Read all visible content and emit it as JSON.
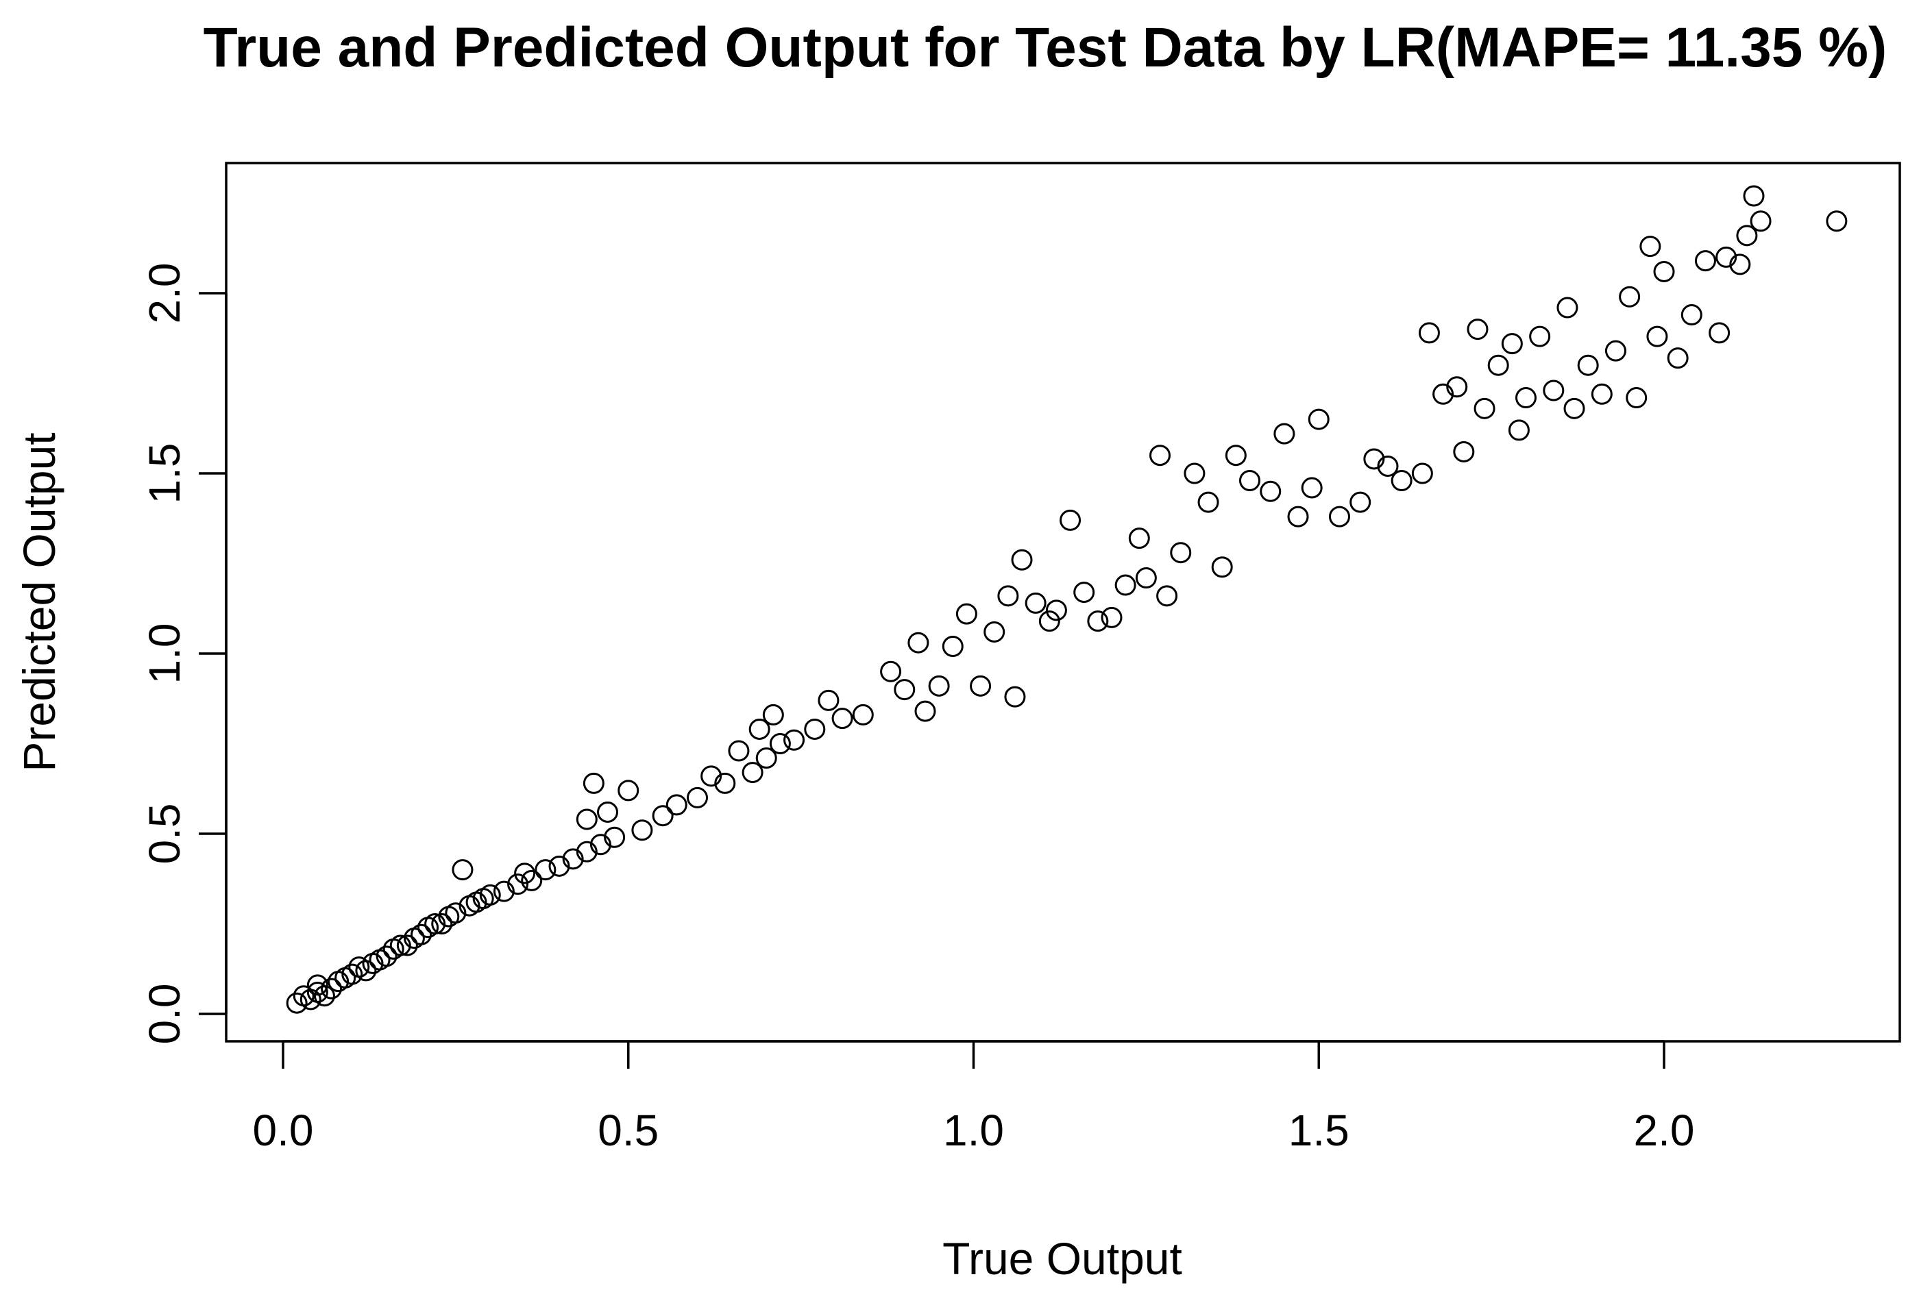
{
  "chart_data": {
    "type": "scatter",
    "title": "True and Predicted Output for Test Data by LR(MAPE= 11.35 %)",
    "xlabel": "True Output",
    "ylabel": "Predicted Output",
    "xlim": [
      0.0,
      2.25
    ],
    "ylim": [
      0.0,
      2.27
    ],
    "xticks": [
      "0.0",
      "0.5",
      "1.0",
      "1.5",
      "2.0"
    ],
    "yticks": [
      "0.0",
      "0.5",
      "1.0",
      "1.5",
      "2.0"
    ],
    "marker": "open-circle",
    "grid": false,
    "legend": "none",
    "colors": {
      "points": "#000000",
      "axes": "#000000",
      "background": "#ffffff"
    },
    "series": [
      {
        "points": [
          [
            0.02,
            0.03
          ],
          [
            0.03,
            0.05
          ],
          [
            0.04,
            0.04
          ],
          [
            0.05,
            0.06
          ],
          [
            0.05,
            0.08
          ],
          [
            0.06,
            0.05
          ],
          [
            0.07,
            0.07
          ],
          [
            0.08,
            0.09
          ],
          [
            0.09,
            0.1
          ],
          [
            0.1,
            0.11
          ],
          [
            0.11,
            0.13
          ],
          [
            0.12,
            0.12
          ],
          [
            0.13,
            0.14
          ],
          [
            0.14,
            0.15
          ],
          [
            0.15,
            0.16
          ],
          [
            0.16,
            0.18
          ],
          [
            0.17,
            0.19
          ],
          [
            0.18,
            0.19
          ],
          [
            0.19,
            0.21
          ],
          [
            0.2,
            0.22
          ],
          [
            0.21,
            0.24
          ],
          [
            0.22,
            0.25
          ],
          [
            0.23,
            0.25
          ],
          [
            0.24,
            0.27
          ],
          [
            0.25,
            0.28
          ],
          [
            0.26,
            0.4
          ],
          [
            0.27,
            0.3
          ],
          [
            0.28,
            0.31
          ],
          [
            0.29,
            0.32
          ],
          [
            0.3,
            0.33
          ],
          [
            0.32,
            0.34
          ],
          [
            0.34,
            0.36
          ],
          [
            0.35,
            0.39
          ],
          [
            0.36,
            0.37
          ],
          [
            0.38,
            0.4
          ],
          [
            0.4,
            0.41
          ],
          [
            0.42,
            0.43
          ],
          [
            0.44,
            0.45
          ],
          [
            0.44,
            0.54
          ],
          [
            0.45,
            0.64
          ],
          [
            0.46,
            0.47
          ],
          [
            0.47,
            0.56
          ],
          [
            0.48,
            0.49
          ],
          [
            0.5,
            0.62
          ],
          [
            0.52,
            0.51
          ],
          [
            0.55,
            0.55
          ],
          [
            0.57,
            0.58
          ],
          [
            0.6,
            0.6
          ],
          [
            0.62,
            0.66
          ],
          [
            0.64,
            0.64
          ],
          [
            0.66,
            0.73
          ],
          [
            0.68,
            0.67
          ],
          [
            0.69,
            0.79
          ],
          [
            0.7,
            0.71
          ],
          [
            0.71,
            0.83
          ],
          [
            0.72,
            0.75
          ],
          [
            0.74,
            0.76
          ],
          [
            0.77,
            0.79
          ],
          [
            0.79,
            0.87
          ],
          [
            0.81,
            0.82
          ],
          [
            0.84,
            0.83
          ],
          [
            0.88,
            0.95
          ],
          [
            0.9,
            0.9
          ],
          [
            0.92,
            1.03
          ],
          [
            0.93,
            0.84
          ],
          [
            0.95,
            0.91
          ],
          [
            0.97,
            1.02
          ],
          [
            0.99,
            1.11
          ],
          [
            1.01,
            0.91
          ],
          [
            1.03,
            1.06
          ],
          [
            1.05,
            1.16
          ],
          [
            1.06,
            0.88
          ],
          [
            1.07,
            1.26
          ],
          [
            1.09,
            1.14
          ],
          [
            1.11,
            1.09
          ],
          [
            1.12,
            1.12
          ],
          [
            1.14,
            1.37
          ],
          [
            1.16,
            1.17
          ],
          [
            1.18,
            1.09
          ],
          [
            1.2,
            1.1
          ],
          [
            1.22,
            1.19
          ],
          [
            1.24,
            1.32
          ],
          [
            1.25,
            1.21
          ],
          [
            1.27,
            1.55
          ],
          [
            1.28,
            1.16
          ],
          [
            1.3,
            1.28
          ],
          [
            1.32,
            1.5
          ],
          [
            1.34,
            1.42
          ],
          [
            1.36,
            1.24
          ],
          [
            1.38,
            1.55
          ],
          [
            1.4,
            1.48
          ],
          [
            1.43,
            1.45
          ],
          [
            1.45,
            1.61
          ],
          [
            1.47,
            1.38
          ],
          [
            1.49,
            1.46
          ],
          [
            1.5,
            1.65
          ],
          [
            1.53,
            1.38
          ],
          [
            1.56,
            1.42
          ],
          [
            1.58,
            1.54
          ],
          [
            1.6,
            1.52
          ],
          [
            1.62,
            1.48
          ],
          [
            1.65,
            1.5
          ],
          [
            1.66,
            1.89
          ],
          [
            1.68,
            1.72
          ],
          [
            1.7,
            1.74
          ],
          [
            1.71,
            1.56
          ],
          [
            1.73,
            1.9
          ],
          [
            1.74,
            1.68
          ],
          [
            1.76,
            1.8
          ],
          [
            1.78,
            1.86
          ],
          [
            1.79,
            1.62
          ],
          [
            1.8,
            1.71
          ],
          [
            1.82,
            1.88
          ],
          [
            1.84,
            1.73
          ],
          [
            1.86,
            1.96
          ],
          [
            1.87,
            1.68
          ],
          [
            1.89,
            1.8
          ],
          [
            1.91,
            1.72
          ],
          [
            1.93,
            1.84
          ],
          [
            1.95,
            1.99
          ],
          [
            1.96,
            1.71
          ],
          [
            1.98,
            2.13
          ],
          [
            1.99,
            1.88
          ],
          [
            2.0,
            2.06
          ],
          [
            2.02,
            1.82
          ],
          [
            2.04,
            1.94
          ],
          [
            2.06,
            2.09
          ],
          [
            2.08,
            1.89
          ],
          [
            2.09,
            2.1
          ],
          [
            2.11,
            2.08
          ],
          [
            2.12,
            2.16
          ],
          [
            2.13,
            2.27
          ],
          [
            2.14,
            2.2
          ],
          [
            2.25,
            2.2
          ]
        ]
      }
    ]
  }
}
